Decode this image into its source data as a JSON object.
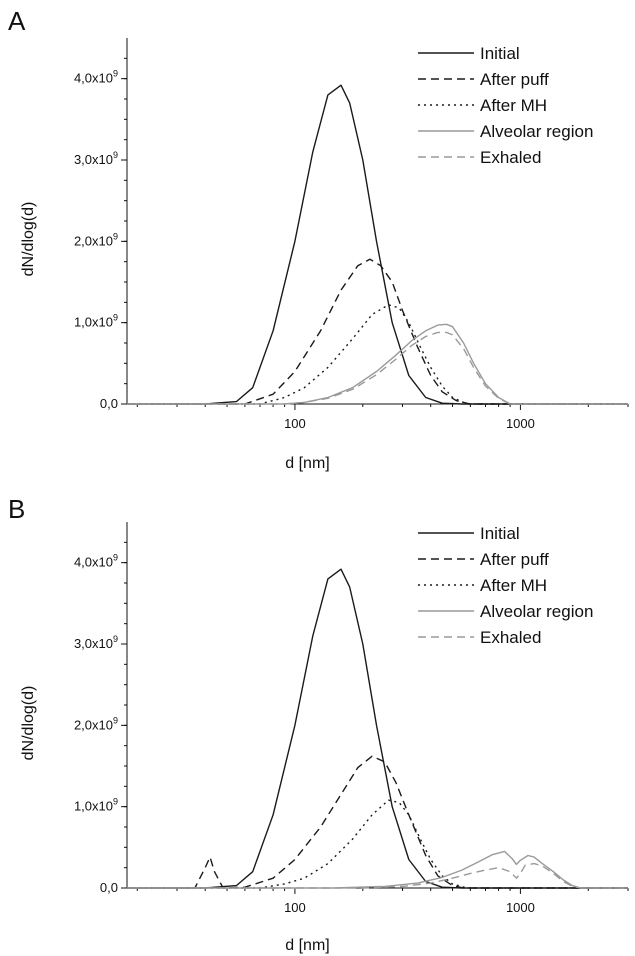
{
  "chart_data": [
    {
      "panel_label": "A",
      "type": "line",
      "xlabel": "d [nm]",
      "ylabel": "dN/dlog(d)",
      "x_scale": "log",
      "xlim": [
        18,
        3000
      ],
      "ylim": [
        0,
        4500000000.0
      ],
      "x_ticks": [
        100,
        1000
      ],
      "x_tick_labels": [
        "100",
        "1000"
      ],
      "y_ticks": [
        0,
        1000000000.0,
        2000000000.0,
        3000000000.0,
        4000000000.0
      ],
      "y_tick_labels": [
        {
          "mantissa": "0,0",
          "exp": ""
        },
        {
          "mantissa": "1,0x10",
          "exp": "9"
        },
        {
          "mantissa": "2,0x10",
          "exp": "9"
        },
        {
          "mantissa": "3,0x10",
          "exp": "9"
        },
        {
          "mantissa": "4,0x10",
          "exp": "9"
        }
      ],
      "grid": false,
      "legend_position": "top-right",
      "series": [
        {
          "name": "Initial",
          "color": "#1a1a1a",
          "dash": "solid",
          "x": [
            18,
            40,
            55,
            65,
            80,
            100,
            120,
            140,
            160,
            175,
            200,
            230,
            270,
            320,
            380,
            450,
            550,
            3000
          ],
          "y": [
            0,
            0,
            30000000.0,
            200000000.0,
            900000000.0,
            2000000000.0,
            3100000000.0,
            3800000000.0,
            3920000000.0,
            3700000000.0,
            3000000000.0,
            2000000000.0,
            1000000000.0,
            350000000.0,
            80000000.0,
            10000000.0,
            0,
            0
          ]
        },
        {
          "name": "After puff",
          "color": "#1a1a1a",
          "dash": "dashed",
          "x": [
            18,
            60,
            80,
            100,
            130,
            160,
            190,
            215,
            240,
            270,
            300,
            350,
            400,
            450,
            520,
            600,
            3000
          ],
          "y": [
            0,
            0,
            120000000.0,
            400000000.0,
            900000000.0,
            1400000000.0,
            1700000000.0,
            1780000000.0,
            1700000000.0,
            1500000000.0,
            1150000000.0,
            700000000.0,
            350000000.0,
            150000000.0,
            40000000.0,
            0,
            0
          ]
        },
        {
          "name": "After MH",
          "color": "#1a1a1a",
          "dash": "dotted",
          "x": [
            18,
            70,
            90,
            110,
            140,
            180,
            220,
            260,
            290,
            320,
            360,
            400,
            450,
            500,
            580,
            3000
          ],
          "y": [
            0,
            0,
            80000000.0,
            200000000.0,
            450000000.0,
            800000000.0,
            1100000000.0,
            1220000000.0,
            1180000000.0,
            1000000000.0,
            700000000.0,
            450000000.0,
            220000000.0,
            80000000.0,
            0,
            0
          ]
        },
        {
          "name": "Alveolar region",
          "color": "#9a9a9a",
          "dash": "solid",
          "x": [
            18,
            90,
            110,
            140,
            180,
            230,
            280,
            330,
            380,
            430,
            470,
            500,
            560,
            620,
            700,
            800,
            900,
            3000
          ],
          "y": [
            0,
            0,
            20000000.0,
            80000000.0,
            200000000.0,
            400000000.0,
            600000000.0,
            780000000.0,
            900000000.0,
            970000000.0,
            980000000.0,
            950000000.0,
            750000000.0,
            500000000.0,
            250000000.0,
            80000000.0,
            0,
            0
          ]
        },
        {
          "name": "Exhaled",
          "color": "#9a9a9a",
          "dash": "dashed",
          "x": [
            18,
            90,
            110,
            140,
            180,
            230,
            280,
            330,
            380,
            430,
            470,
            500,
            560,
            620,
            700,
            800,
            900,
            3000
          ],
          "y": [
            0,
            0,
            20000000.0,
            70000000.0,
            180000000.0,
            360000000.0,
            550000000.0,
            720000000.0,
            830000000.0,
            880000000.0,
            880000000.0,
            850000000.0,
            680000000.0,
            450000000.0,
            220000000.0,
            70000000.0,
            0,
            0
          ]
        }
      ]
    },
    {
      "panel_label": "B",
      "type": "line",
      "xlabel": "d [nm]",
      "ylabel": "dN/dlog(d)",
      "x_scale": "log",
      "xlim": [
        18,
        3000
      ],
      "ylim": [
        0,
        4500000000.0
      ],
      "x_ticks": [
        100,
        1000
      ],
      "x_tick_labels": [
        "100",
        "1000"
      ],
      "y_ticks": [
        0,
        1000000000.0,
        2000000000.0,
        3000000000.0,
        4000000000.0
      ],
      "y_tick_labels": [
        {
          "mantissa": "0,0",
          "exp": ""
        },
        {
          "mantissa": "1,0x10",
          "exp": "9"
        },
        {
          "mantissa": "2,0x10",
          "exp": "9"
        },
        {
          "mantissa": "3,0x10",
          "exp": "9"
        },
        {
          "mantissa": "4,0x10",
          "exp": "9"
        }
      ],
      "grid": false,
      "legend_position": "top-right",
      "series": [
        {
          "name": "Initial",
          "color": "#1a1a1a",
          "dash": "solid",
          "x": [
            18,
            40,
            55,
            65,
            80,
            100,
            120,
            140,
            160,
            175,
            200,
            230,
            270,
            320,
            380,
            450,
            550,
            3000
          ],
          "y": [
            0,
            0,
            30000000.0,
            200000000.0,
            900000000.0,
            2000000000.0,
            3100000000.0,
            3800000000.0,
            3920000000.0,
            3700000000.0,
            3000000000.0,
            2000000000.0,
            1000000000.0,
            350000000.0,
            80000000.0,
            10000000.0,
            0,
            0
          ]
        },
        {
          "name": "After puff",
          "color": "#1a1a1a",
          "dash": "dashed",
          "x": [
            18,
            36,
            40,
            42,
            44,
            48,
            60,
            80,
            100,
            130,
            160,
            190,
            220,
            250,
            280,
            320,
            380,
            430,
            500,
            560,
            3000
          ],
          "y": [
            0,
            0,
            250000000.0,
            380000000.0,
            200000000.0,
            0,
            10000000.0,
            120000000.0,
            350000000.0,
            750000000.0,
            1150000000.0,
            1480000000.0,
            1620000000.0,
            1550000000.0,
            1300000000.0,
            900000000.0,
            400000000.0,
            150000000.0,
            30000000.0,
            0,
            0
          ]
        },
        {
          "name": "After MH",
          "color": "#1a1a1a",
          "dash": "dotted",
          "x": [
            18,
            70,
            90,
            110,
            140,
            180,
            220,
            260,
            290,
            320,
            360,
            400,
            450,
            500,
            580,
            3000
          ],
          "y": [
            0,
            0,
            50000000.0,
            120000000.0,
            300000000.0,
            600000000.0,
            900000000.0,
            1080000000.0,
            1050000000.0,
            900000000.0,
            600000000.0,
            350000000.0,
            150000000.0,
            50000000.0,
            0,
            0
          ]
        },
        {
          "name": "Alveolar region",
          "color": "#9a9a9a",
          "dash": "solid",
          "x": [
            18,
            150,
            250,
            350,
            450,
            550,
            650,
            750,
            850,
            920,
            960,
            1000,
            1080,
            1150,
            1250,
            1400,
            1550,
            1700,
            1850,
            3000
          ],
          "y": [
            0,
            0,
            20000000.0,
            60000000.0,
            130000000.0,
            220000000.0,
            320000000.0,
            410000000.0,
            450000000.0,
            360000000.0,
            290000000.0,
            340000000.0,
            400000000.0,
            380000000.0,
            300000000.0,
            200000000.0,
            100000000.0,
            30000000.0,
            0,
            0
          ]
        },
        {
          "name": "Exhaled",
          "color": "#9a9a9a",
          "dash": "dashed",
          "x": [
            18,
            200,
            300,
            400,
            500,
            600,
            700,
            800,
            900,
            960,
            1000,
            1050,
            1150,
            1250,
            1400,
            1550,
            1700,
            1850,
            3000
          ],
          "y": [
            0,
            0,
            20000000.0,
            60000000.0,
            120000000.0,
            180000000.0,
            220000000.0,
            250000000.0,
            200000000.0,
            120000000.0,
            180000000.0,
            280000000.0,
            300000000.0,
            270000000.0,
            180000000.0,
            80000000.0,
            20000000.0,
            0,
            0
          ]
        }
      ]
    }
  ]
}
